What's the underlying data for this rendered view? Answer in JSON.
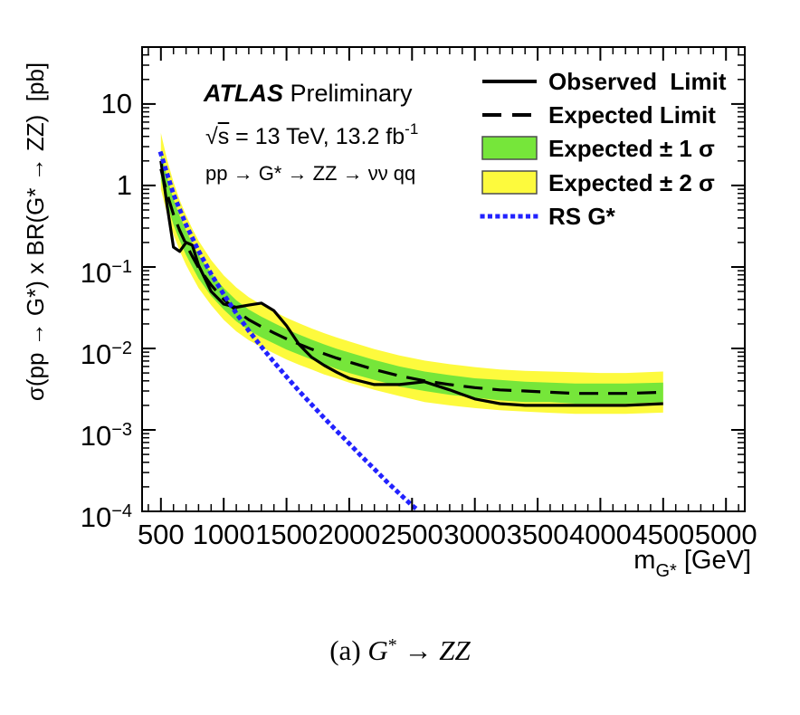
{
  "header": {
    "experiment": "ATLAS",
    "status": " Preliminary",
    "sqrt_symbol": "√",
    "sqrt_arg": "s",
    "energy_lumi_rest": " = 13 TeV, 13.2 fb",
    "lumi_sup": "-1",
    "process": "pp → G* → ZZ → νν qq"
  },
  "legend": {
    "position": "top-right",
    "items": [
      {
        "label": "Observed  Limit",
        "style": "solid-line"
      },
      {
        "label": "Expected Limit",
        "style": "dashed-line"
      },
      {
        "label": "Expected ± 1 σ",
        "style": "filled-band"
      },
      {
        "label": "Expected ± 2 σ",
        "style": "filled-band"
      },
      {
        "label": "RS G*",
        "style": "dotted-line"
      }
    ]
  },
  "colors": {
    "observed": "#000000",
    "expected": "#000000",
    "band_1sigma": "#76e63a",
    "band_2sigma": "#fdfa3d",
    "theory": "#2222ff",
    "frame": "#000000",
    "swatch_border": "#4d4d4d"
  },
  "axis_titles": {
    "x_main": "m",
    "x_sub": "G*",
    "x_unit": " [GeV]",
    "y_title": "σ(pp → G*) x BR(G* → ZZ)  [pb]"
  },
  "caption": {
    "prefix": "(a) ",
    "g": "G",
    "star": "*",
    "arrow": " → ",
    "zz": "ZZ"
  },
  "chart_data": {
    "type": "line",
    "title": "",
    "x_axis": {
      "label": "m_G* [GeV]",
      "range": [
        350,
        5150
      ],
      "scale": "linear",
      "ticks": [
        500,
        1000,
        1500,
        2000,
        2500,
        3000,
        3500,
        4000,
        4500,
        5000
      ],
      "minor_tick_step": 100
    },
    "y_axis": {
      "label": "σ(pp → G*) x BR(G* → ZZ) [pb]",
      "range": [
        0.0001,
        50
      ],
      "scale": "log",
      "ticks": [
        {
          "v": 10,
          "base": "10",
          "sup": ""
        },
        {
          "v": 1,
          "base": "1",
          "sup": ""
        },
        {
          "v": 0.1,
          "base": "10",
          "sup": "−1"
        },
        {
          "v": 0.01,
          "base": "10",
          "sup": "−2"
        },
        {
          "v": 0.001,
          "base": "10",
          "sup": "−3"
        },
        {
          "v": 0.0001,
          "base": "10",
          "sup": "−4"
        }
      ]
    },
    "grid": false,
    "legend_position": "top-right",
    "masses": [
      500,
      550,
      600,
      650,
      700,
      750,
      800,
      900,
      1000,
      1100,
      1200,
      1300,
      1400,
      1500,
      1600,
      1700,
      1800,
      1900,
      2000,
      2200,
      2400,
      2600,
      2800,
      3000,
      3200,
      3400,
      3600,
      3800,
      4000,
      4200,
      4500
    ],
    "series": {
      "observed": [
        2.0,
        0.55,
        0.175,
        0.155,
        0.2,
        0.185,
        0.105,
        0.05,
        0.035,
        0.032,
        0.034,
        0.036,
        0.029,
        0.019,
        0.0112,
        0.0078,
        0.0062,
        0.0051,
        0.0043,
        0.0036,
        0.0036,
        0.0039,
        0.0031,
        0.0024,
        0.0021,
        0.002,
        0.002,
        0.002,
        0.002,
        0.002,
        0.0021
      ],
      "expected": [
        1.6,
        0.78,
        0.44,
        0.28,
        0.19,
        0.135,
        0.098,
        0.06,
        0.04,
        0.029,
        0.0225,
        0.0185,
        0.0155,
        0.0131,
        0.0113,
        0.0098,
        0.0086,
        0.0076,
        0.0068,
        0.0055,
        0.0046,
        0.004,
        0.0036,
        0.0033,
        0.0031,
        0.003,
        0.0029,
        0.0028,
        0.0028,
        0.0028,
        0.0029
      ],
      "green_band_upper": [
        2.6,
        1.25,
        0.68,
        0.42,
        0.28,
        0.195,
        0.14,
        0.084,
        0.055,
        0.039,
        0.03,
        0.0245,
        0.0205,
        0.0172,
        0.0148,
        0.0128,
        0.0112,
        0.0099,
        0.0089,
        0.0072,
        0.006,
        0.0052,
        0.0047,
        0.0043,
        0.0041,
        0.0039,
        0.0038,
        0.0037,
        0.0037,
        0.0037,
        0.0038
      ],
      "green_band_lower": [
        1.18,
        0.58,
        0.33,
        0.21,
        0.14,
        0.1,
        0.072,
        0.044,
        0.03,
        0.0215,
        0.0167,
        0.0137,
        0.0115,
        0.0097,
        0.0084,
        0.0073,
        0.0064,
        0.0056,
        0.005,
        0.0041,
        0.0034,
        0.003,
        0.0027,
        0.0025,
        0.0023,
        0.0022,
        0.0022,
        0.0021,
        0.0021,
        0.0021,
        0.0022
      ],
      "yellow_band_upper": [
        4.4,
        2.05,
        1.1,
        0.66,
        0.43,
        0.295,
        0.21,
        0.122,
        0.079,
        0.056,
        0.0425,
        0.0345,
        0.0285,
        0.0238,
        0.0204,
        0.0176,
        0.0154,
        0.0136,
        0.0122,
        0.0098,
        0.0082,
        0.0071,
        0.0064,
        0.0059,
        0.0055,
        0.0053,
        0.0052,
        0.0051,
        0.005,
        0.005,
        0.0052
      ],
      "yellow_band_lower": [
        0.9,
        0.44,
        0.25,
        0.157,
        0.106,
        0.076,
        0.055,
        0.034,
        0.0224,
        0.0162,
        0.0126,
        0.0104,
        0.0087,
        0.0073,
        0.0063,
        0.0055,
        0.0048,
        0.0043,
        0.0038,
        0.0031,
        0.0026,
        0.0022,
        0.002,
        0.00185,
        0.00174,
        0.00168,
        0.00162,
        0.00157,
        0.00157,
        0.00157,
        0.00163
      ]
    },
    "theory": {
      "name": "RS G*",
      "masses": [
        500,
        600,
        700,
        800,
        900,
        1000,
        1100,
        1200,
        1300,
        1400,
        1500,
        1600,
        1700,
        1800,
        1900,
        2000,
        2100,
        2200,
        2300,
        2400,
        2500,
        2560
      ],
      "values": [
        2.45,
        0.78,
        0.33,
        0.158,
        0.082,
        0.046,
        0.027,
        0.0165,
        0.0105,
        0.0068,
        0.0045,
        0.003,
        0.00205,
        0.0014,
        0.00097,
        0.00068,
        0.00047,
        0.00033,
        0.00023,
        0.000165,
        0.000118,
        0.0001
      ]
    }
  }
}
